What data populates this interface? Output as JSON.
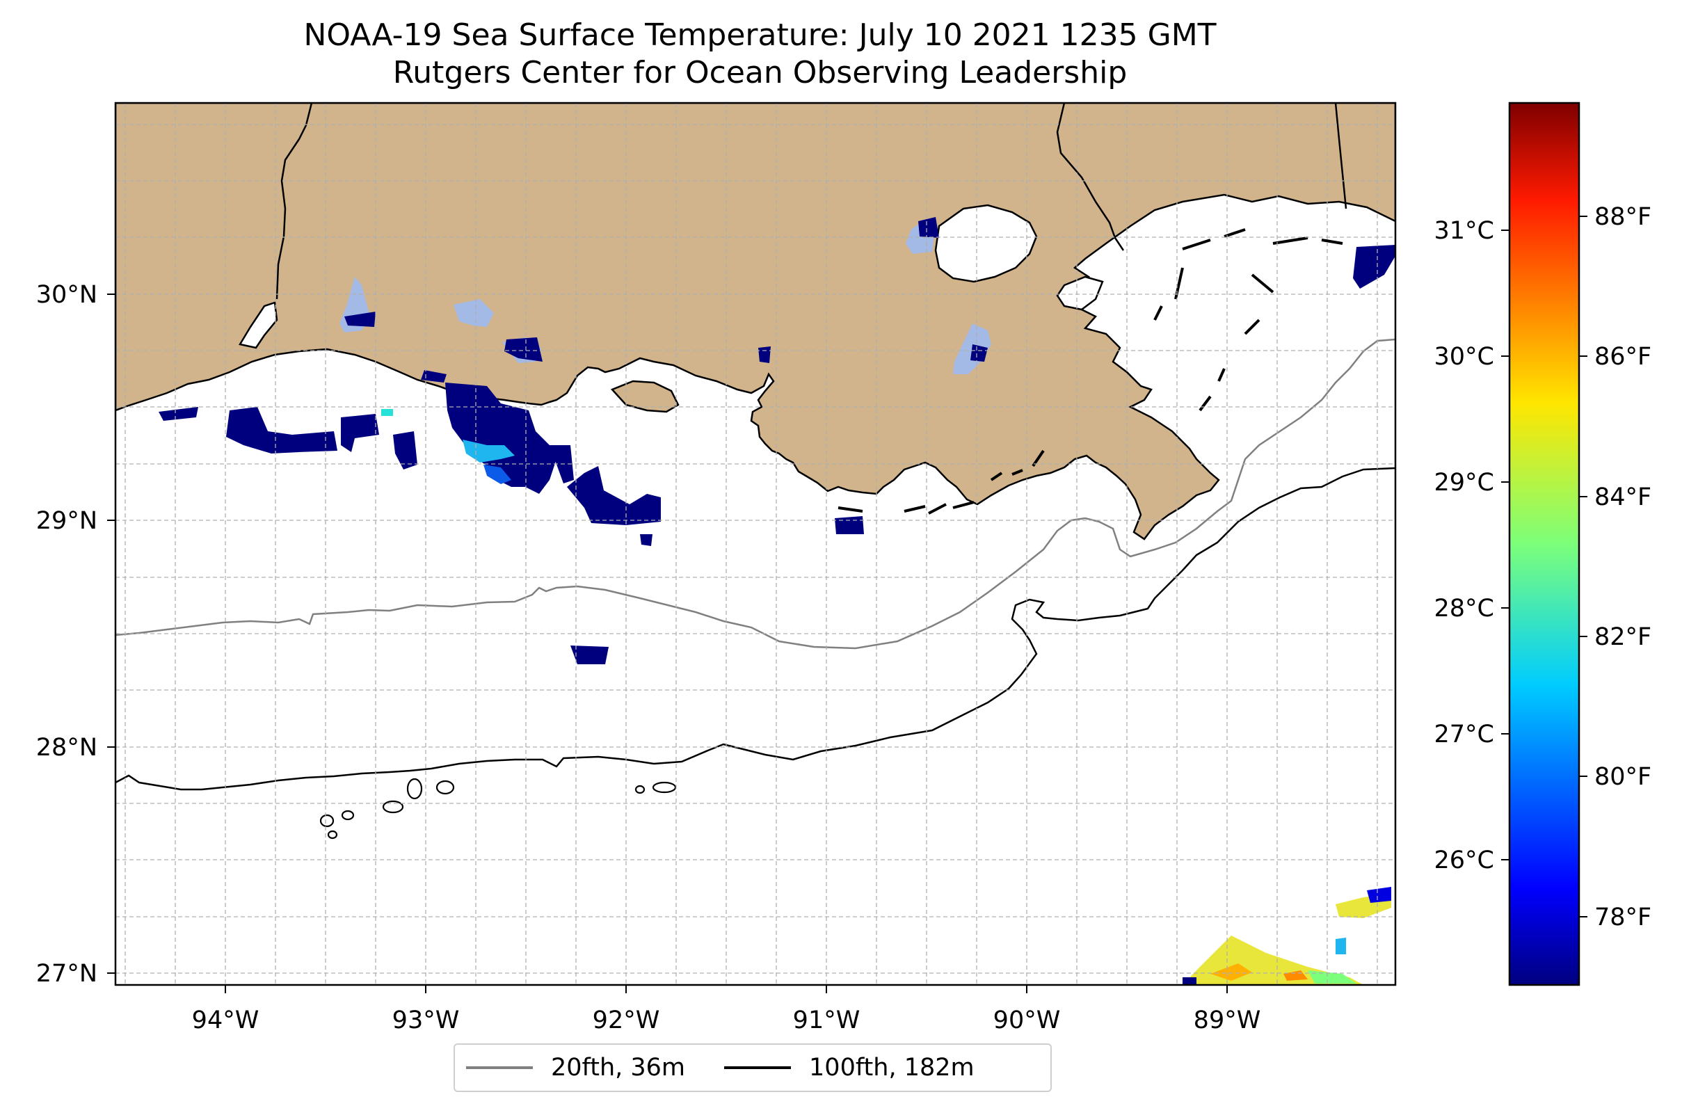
{
  "title": {
    "line1": "NOAA-19 Sea Surface Temperature: July 10 2021 1235 GMT",
    "line2": "Rutgers Center for Ocean Observing Leadership"
  },
  "map": {
    "type": "sea-surface-temperature-map",
    "lon_range": [
      -94.55,
      -88.18
    ],
    "lat_range": [
      26.93,
      30.82
    ],
    "x_ticks": [
      {
        "value": -94,
        "label": "94°W"
      },
      {
        "value": -93,
        "label": "93°W"
      },
      {
        "value": -92,
        "label": "92°W"
      },
      {
        "value": -91,
        "label": "91°W"
      },
      {
        "value": -90,
        "label": "90°W"
      },
      {
        "value": -89,
        "label": "89°W"
      }
    ],
    "y_ticks": [
      {
        "value": 27,
        "label": "27°N"
      },
      {
        "value": 28,
        "label": "28°N"
      },
      {
        "value": 29,
        "label": "29°N"
      },
      {
        "value": 30,
        "label": "30°N"
      }
    ],
    "grid": true,
    "land_color": "#D2B48C",
    "water_color": "#FFFFFF"
  },
  "colorbar": {
    "colormap": "jet",
    "range_f": [
      77.0,
      89.8
    ],
    "celsius_ticks": [
      {
        "value": 26,
        "label": "26°C"
      },
      {
        "value": 27,
        "label": "27°C"
      },
      {
        "value": 28,
        "label": "28°C"
      },
      {
        "value": 29,
        "label": "29°C"
      },
      {
        "value": 30,
        "label": "30°C"
      },
      {
        "value": 31,
        "label": "31°C"
      }
    ],
    "fahrenheit_ticks": [
      {
        "value": 78,
        "label": "78°F"
      },
      {
        "value": 80,
        "label": "80°F"
      },
      {
        "value": 82,
        "label": "82°F"
      },
      {
        "value": 84,
        "label": "84°F"
      },
      {
        "value": 86,
        "label": "86°F"
      },
      {
        "value": 88,
        "label": "88°F"
      }
    ]
  },
  "legend": {
    "placement": "bottom-center",
    "items": [
      {
        "label": "20fth, 36m",
        "color": "#808080"
      },
      {
        "label": "100fth, 182m",
        "color": "#000000"
      }
    ]
  }
}
